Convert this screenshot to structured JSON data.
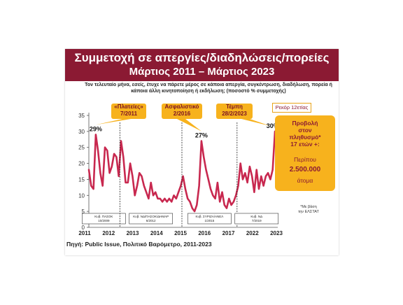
{
  "title": {
    "line1": "Συμμετοχή σε απεργίες/διαδηλώσεις/πορείες",
    "line2": "Μάρτιος 2011 – Μάρτιος 2023"
  },
  "subtitle": "Τον τελευταίο μήνα, εσείς, έτυχε να πάρετε μέρος σε κάποια απεργία, συγκέντρωση, διαδήλωση, πορεία ή κάποια άλλη κινητοποίηση ή εκδήλωση; (ποσοστό % συμμετοχής)",
  "source": "Πηγή: Public Issue, Πολιτικό Βαρόμετρο, 2011-2023",
  "callouts": {
    "plateies": {
      "line1": "«Πλατείες»",
      "line2": "7/2011"
    },
    "asfalistiko": {
      "line1": "Ασφαλιστικό",
      "line2": "2/2016"
    },
    "tempi": {
      "line1": "Τέμπη",
      "line2": "28/2/2023"
    }
  },
  "record_label": "Ρεκόρ 12ετίας",
  "projection": {
    "line1": "Προβολή",
    "line2": "στον",
    "line3": "πληθυσμό*",
    "line4": "17 ετών +:",
    "around": "Περίπου",
    "number": "2.500.000",
    "unit": "άτομα"
  },
  "footnote": {
    "line1": "*Με βάση",
    "line2": "την ΕΛΣΤΑΤ"
  },
  "chart_data": {
    "type": "line",
    "title": "Συμμετοχή σε απεργίες/διαδηλώσεις/πορείες",
    "xlabel": "",
    "ylabel": "",
    "ylim": [
      0,
      35
    ],
    "yticks": [
      0,
      5,
      10,
      15,
      20,
      25,
      30,
      35
    ],
    "grid": false,
    "x_year_labels": [
      "2011",
      "2012",
      "2013",
      "2014",
      "2015",
      "2016",
      "2017",
      "2022",
      "2023"
    ],
    "series": [
      {
        "color": "#c8284f",
        "segments": [
          {
            "period": "Κυβ. ΠΑΣΟΚ 10/2009",
            "values": [
              18,
              13,
              12,
              29,
              24,
              17,
              13,
              25,
              24,
              17,
              19,
              23,
              22,
              16
            ]
          },
          {
            "period": "Κυβ. ΝΔ/ΠΑΣΟΚ/ΔΗΜΑΡ 6/2012",
            "values": [
              27,
              22,
              14,
              14,
              20,
              16,
              10,
              13,
              17,
              16,
              13,
              11,
              9,
              14,
              10,
              11,
              9,
              9,
              8,
              9,
              8,
              9,
              8,
              10,
              9,
              11,
              13
            ]
          },
          {
            "period": "Κυβ. ΣΥΡΙΖΑ/ΑΝΕΛ 1/2015",
            "values": [
              16,
              12,
              9,
              8,
              6,
              5,
              7,
              13,
              27,
              22,
              18,
              15,
              12,
              10,
              9,
              14,
              8,
              11,
              7,
              6,
              9,
              7,
              8,
              10
            ]
          },
          {
            "period": "Κυβ. ΝΔ 7/2019",
            "values": [
              13,
              20,
              15,
              17,
              14,
              19,
              16,
              11,
              18,
              12,
              16,
              13,
              16,
              17,
              15,
              18,
              30
            ]
          }
        ]
      }
    ],
    "annotations": [
      {
        "text": "29%",
        "x_index": 3,
        "value": 29
      },
      {
        "text": "27%",
        "x_index": 49,
        "value": 27
      },
      {
        "text": "30%",
        "x_index": 80,
        "value": 30
      }
    ]
  }
}
